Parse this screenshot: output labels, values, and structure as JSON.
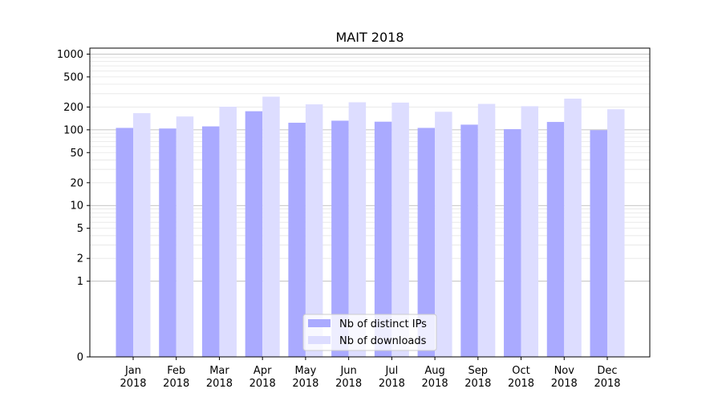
{
  "chart_data": {
    "type": "bar",
    "title": "MAIT 2018",
    "xlabel": "",
    "ylabel": "",
    "yscale": "symlog",
    "ylim": [
      0,
      1200
    ],
    "yticks": [
      0,
      1,
      2,
      5,
      10,
      20,
      50,
      100,
      200,
      500,
      1000
    ],
    "grid": true,
    "legend_position": "bottom-center",
    "categories": [
      [
        "Jan",
        "2018"
      ],
      [
        "Feb",
        "2018"
      ],
      [
        "Mar",
        "2018"
      ],
      [
        "Apr",
        "2018"
      ],
      [
        "May",
        "2018"
      ],
      [
        "Jun",
        "2018"
      ],
      [
        "Jul",
        "2018"
      ],
      [
        "Aug",
        "2018"
      ],
      [
        "Sep",
        "2018"
      ],
      [
        "Oct",
        "2018"
      ],
      [
        "Nov",
        "2018"
      ],
      [
        "Dec",
        "2018"
      ]
    ],
    "series": [
      {
        "name": "Nb of distinct IPs",
        "color": "#aaaaff",
        "values": [
          106,
          104,
          111,
          176,
          124,
          132,
          128,
          106,
          117,
          102,
          127,
          99
        ]
      },
      {
        "name": "Nb of downloads",
        "color": "#ddddff",
        "values": [
          166,
          150,
          202,
          274,
          217,
          231,
          229,
          173,
          220,
          205,
          258,
          187
        ]
      }
    ]
  }
}
